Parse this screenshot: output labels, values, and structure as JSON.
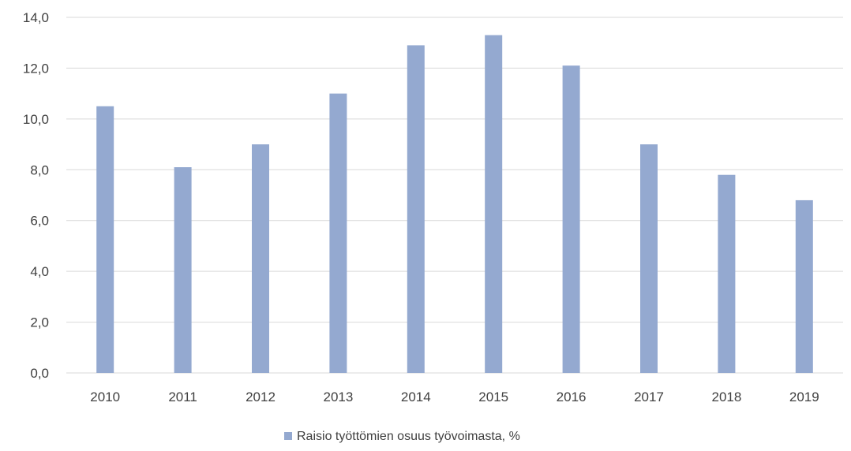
{
  "chart_data": {
    "type": "bar",
    "categories": [
      "2010",
      "2011",
      "2012",
      "2013",
      "2014",
      "2015",
      "2016",
      "2017",
      "2018",
      "2019"
    ],
    "series": [
      {
        "name": "Raisio työttömien osuus työvoimasta, %",
        "values": [
          10.5,
          8.1,
          9.0,
          11.0,
          12.9,
          13.3,
          12.1,
          9.0,
          7.8,
          6.8
        ],
        "color": "#94a9d0"
      }
    ],
    "ylim": [
      0,
      14
    ],
    "y_ticks": [
      "0,0",
      "2,0",
      "4,0",
      "6,0",
      "8,0",
      "10,0",
      "12,0",
      "14,0"
    ],
    "title": "",
    "xlabel": "",
    "ylabel": "",
    "grid": true,
    "legend_position": "bottom"
  },
  "colors": {
    "gridline": "#d9d9d9",
    "axis": "#d9d9d9",
    "text": "#404040"
  }
}
